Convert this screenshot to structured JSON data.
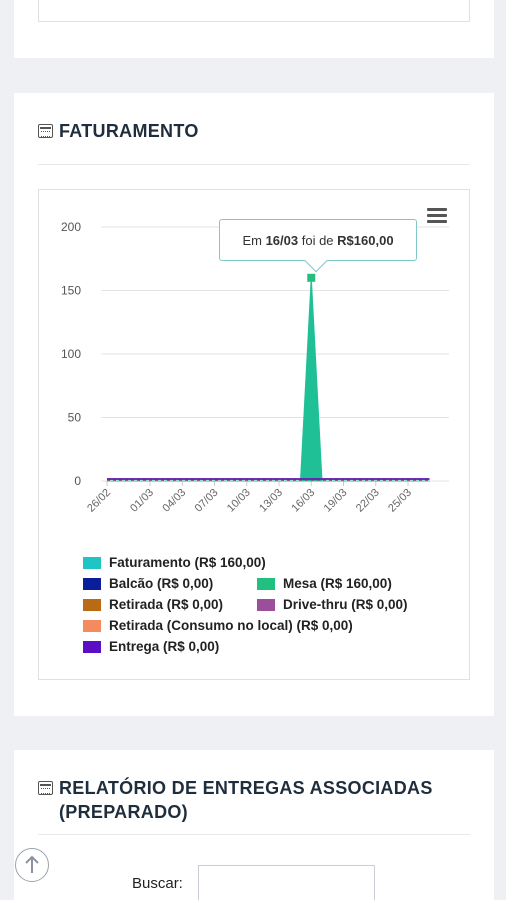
{
  "faturamento_card": {
    "title": "FATURAMENTO"
  },
  "relatorio_card": {
    "title": "RELATÓRIO DE ENTREGAS ASSOCIADAS (PREPARADO)",
    "search_label": "Buscar:",
    "search_value": ""
  },
  "tooltip": {
    "prefix": "Em",
    "date": "16/03",
    "middle": "foi de",
    "value": "R$160,00"
  },
  "icons": {
    "menu": "hamburger-menu-icon",
    "card_title": "calendar-icon",
    "scroll_top": "arrow-up-circle-icon"
  },
  "chart_data": {
    "type": "area",
    "title": "",
    "xlabel": "",
    "ylabel": "",
    "ylim": [
      0,
      200
    ],
    "yticks": [
      0,
      50,
      100,
      150,
      200
    ],
    "x": [
      "26/02",
      "27/02",
      "28/02",
      "29/02",
      "01/03",
      "02/03",
      "03/03",
      "04/03",
      "05/03",
      "06/03",
      "07/03",
      "08/03",
      "09/03",
      "10/03",
      "11/03",
      "12/03",
      "13/03",
      "14/03",
      "15/03",
      "16/03",
      "17/03",
      "18/03",
      "19/03",
      "20/03",
      "21/03",
      "22/03",
      "23/03",
      "24/03",
      "25/03",
      "26/03",
      "27/03"
    ],
    "xticks": [
      "26/02",
      "01/03",
      "04/03",
      "07/03",
      "10/03",
      "13/03",
      "16/03",
      "19/03",
      "22/03",
      "25/03"
    ],
    "grid": true,
    "legend_position": "bottom",
    "series": [
      {
        "name": "Faturamento (R$ 160,00)",
        "color": "#1fc4c4",
        "values": [
          0,
          0,
          0,
          0,
          0,
          0,
          0,
          0,
          0,
          0,
          0,
          0,
          0,
          0,
          0,
          0,
          0,
          0,
          0,
          160,
          0,
          0,
          0,
          0,
          0,
          0,
          0,
          0,
          0,
          0,
          0
        ]
      },
      {
        "name": "Balcão (R$ 0,00)",
        "color": "#0a1d9a",
        "values": [
          0,
          0,
          0,
          0,
          0,
          0,
          0,
          0,
          0,
          0,
          0,
          0,
          0,
          0,
          0,
          0,
          0,
          0,
          0,
          0,
          0,
          0,
          0,
          0,
          0,
          0,
          0,
          0,
          0,
          0,
          0
        ]
      },
      {
        "name": "Mesa (R$ 160,00)",
        "color": "#22bf80",
        "values": [
          0,
          0,
          0,
          0,
          0,
          0,
          0,
          0,
          0,
          0,
          0,
          0,
          0,
          0,
          0,
          0,
          0,
          0,
          0,
          160,
          0,
          0,
          0,
          0,
          0,
          0,
          0,
          0,
          0,
          0,
          0
        ]
      },
      {
        "name": "Retirada (R$ 0,00)",
        "color": "#b86b12",
        "values": [
          0,
          0,
          0,
          0,
          0,
          0,
          0,
          0,
          0,
          0,
          0,
          0,
          0,
          0,
          0,
          0,
          0,
          0,
          0,
          0,
          0,
          0,
          0,
          0,
          0,
          0,
          0,
          0,
          0,
          0,
          0
        ]
      },
      {
        "name": "Drive-thru (R$ 0,00)",
        "color": "#9b4f9b",
        "values": [
          0,
          0,
          0,
          0,
          0,
          0,
          0,
          0,
          0,
          0,
          0,
          0,
          0,
          0,
          0,
          0,
          0,
          0,
          0,
          0,
          0,
          0,
          0,
          0,
          0,
          0,
          0,
          0,
          0,
          0,
          0
        ]
      },
      {
        "name": "Retirada (Consumo no local) (R$ 0,00)",
        "color": "#f58a5e",
        "values": [
          0,
          0,
          0,
          0,
          0,
          0,
          0,
          0,
          0,
          0,
          0,
          0,
          0,
          0,
          0,
          0,
          0,
          0,
          0,
          0,
          0,
          0,
          0,
          0,
          0,
          0,
          0,
          0,
          0,
          0,
          0
        ]
      },
      {
        "name": "Entrega (R$ 0,00)",
        "color": "#5b0fc4",
        "values": [
          0,
          0,
          0,
          0,
          0,
          0,
          0,
          0,
          0,
          0,
          0,
          0,
          0,
          0,
          0,
          0,
          0,
          0,
          0,
          0,
          0,
          0,
          0,
          0,
          0,
          0,
          0,
          0,
          0,
          0,
          0
        ]
      }
    ]
  }
}
